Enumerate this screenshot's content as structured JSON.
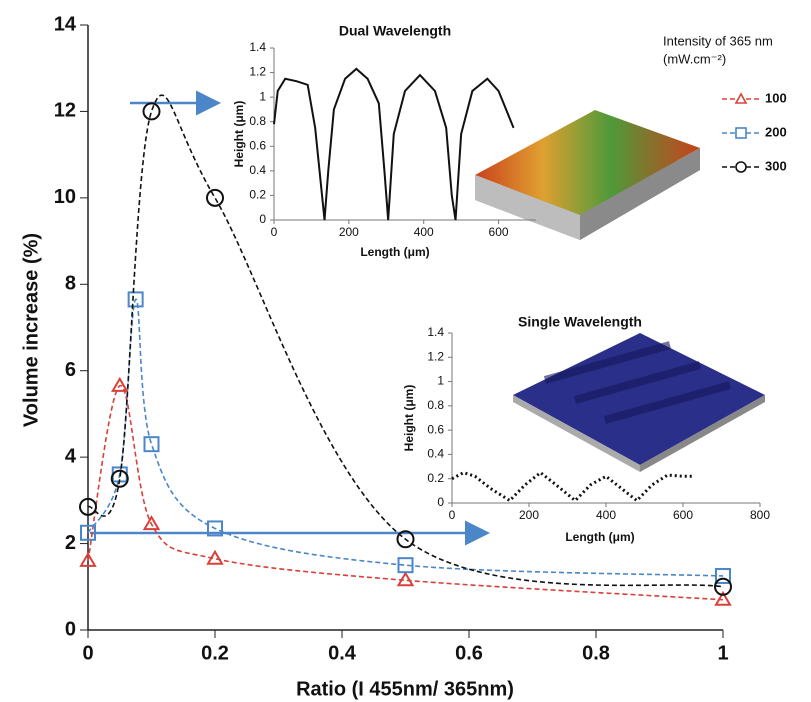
{
  "chart_data": [
    {
      "type": "line",
      "x_label": "Ratio (I 455nm/ 365nm)",
      "y_label": "Volume increase (%)",
      "legend_title": "Intensity of 365 nm",
      "legend_subtitle": "(mW.cm⁻²)",
      "legend": "upper right",
      "xlim": [
        0,
        1
      ],
      "xticks": [
        0,
        0.2,
        0.4,
        0.6,
        0.8,
        1
      ],
      "ylim": [
        0,
        14
      ],
      "yticks": [
        0,
        2,
        4,
        6,
        8,
        10,
        12,
        14
      ],
      "series": [
        {
          "name": "100",
          "color": "#d9403a",
          "marker": "triangle",
          "x": [
            0,
            0.05,
            0.1,
            0.2,
            0.5,
            1
          ],
          "values": [
            1.6,
            5.65,
            2.45,
            1.65,
            1.15,
            0.7
          ]
        },
        {
          "name": "200",
          "color": "#4a86c8",
          "marker": "square",
          "x": [
            0,
            0.05,
            0.075,
            0.1,
            0.2,
            0.5,
            1
          ],
          "values": [
            2.25,
            3.6,
            7.65,
            4.3,
            2.35,
            1.5,
            1.25
          ]
        },
        {
          "name": "300",
          "color": "#111111",
          "marker": "circle",
          "x": [
            0,
            0.05,
            0.1,
            0.2,
            0.5,
            1
          ],
          "values": [
            2.85,
            3.5,
            12,
            10,
            2.1,
            1.0
          ]
        }
      ]
    },
    {
      "type": "profile",
      "title": "Dual Wavelength",
      "x_label": "Length (μm)",
      "y_label": "Height (μm)",
      "line_style": "solid",
      "color": "#111111",
      "xlim": [
        0,
        700
      ],
      "xticks": [
        0,
        200,
        400,
        600
      ],
      "ylim": [
        0,
        1.4
      ],
      "yticks": [
        0,
        0.2,
        0.4,
        0.6,
        0.8,
        1,
        1.2,
        1.4
      ],
      "x": [
        0,
        10,
        30,
        60,
        90,
        110,
        125,
        135,
        145,
        160,
        190,
        220,
        250,
        280,
        295,
        305,
        320,
        350,
        390,
        430,
        460,
        475,
        485,
        500,
        530,
        570,
        600,
        620,
        640
      ],
      "values": [
        0.78,
        1.05,
        1.15,
        1.13,
        1.1,
        0.75,
        0.3,
        0,
        0.4,
        0.9,
        1.15,
        1.23,
        1.15,
        0.95,
        0.4,
        0,
        0.7,
        1.05,
        1.18,
        1.05,
        0.75,
        0.2,
        0,
        0.7,
        1.05,
        1.15,
        1.05,
        0.9,
        0.75
      ]
    },
    {
      "type": "profile",
      "title": "Single Wavelength",
      "x_label": "Length (μm)",
      "y_label": "Height (μm)",
      "line_style": "dotted",
      "color": "#111111",
      "xlim": [
        0,
        800
      ],
      "xticks": [
        0,
        200,
        400,
        600,
        800
      ],
      "ylim": [
        0,
        1.4
      ],
      "yticks": [
        0,
        0.2,
        0.4,
        0.6,
        0.8,
        1,
        1.2,
        1.4
      ],
      "x": [
        0,
        30,
        60,
        100,
        150,
        190,
        230,
        270,
        320,
        360,
        400,
        440,
        480,
        520,
        560,
        600,
        630
      ],
      "values": [
        0.2,
        0.25,
        0.22,
        0.12,
        0.02,
        0.15,
        0.25,
        0.15,
        0.02,
        0.15,
        0.22,
        0.12,
        0.02,
        0.15,
        0.23,
        0.22,
        0.22
      ]
    }
  ]
}
